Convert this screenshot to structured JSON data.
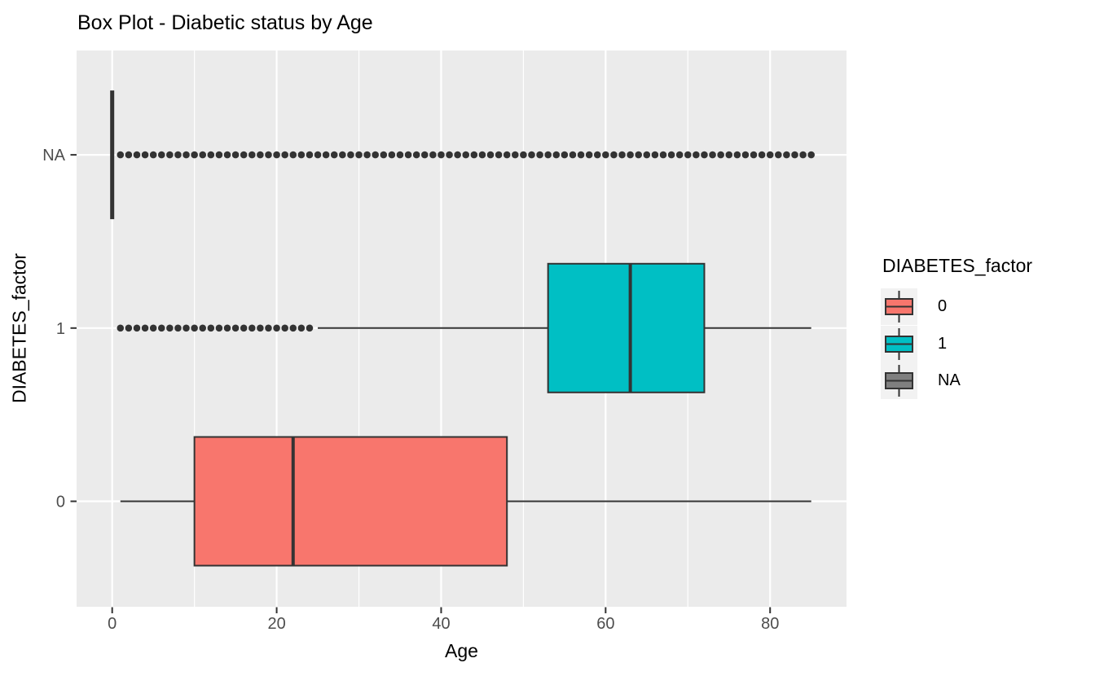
{
  "chart_data": {
    "type": "boxplot",
    "orientation": "horizontal",
    "title": "Box Plot - Diabetic status by Age",
    "xlabel": "Age",
    "ylabel": "DIABETES_factor",
    "x_ticks": [
      0,
      20,
      40,
      60,
      80
    ],
    "minor_gridlines_x": [
      10,
      30,
      50,
      70
    ],
    "xlim": [
      -4.3,
      89.3
    ],
    "categories": [
      "0",
      "1",
      "NA"
    ],
    "grid": "on",
    "panel_background": "#EBEBEB",
    "gridline_color": "#FFFFFF",
    "box_stroke_color": "#333333",
    "outlier_color": "#333333",
    "axis_text_color": "#4D4D4D",
    "series": [
      {
        "group": "0",
        "color": "#F8766D",
        "whisker_low": 1,
        "q1": 10,
        "median": 22,
        "q3": 48,
        "whisker_high": 85,
        "outliers": []
      },
      {
        "group": "1",
        "color": "#00BFC4",
        "whisker_low": 25,
        "q1": 53,
        "median": 63,
        "q3": 72,
        "whisker_high": 85,
        "outliers": [
          1,
          2,
          3,
          4,
          5,
          6,
          7,
          8,
          9,
          10,
          11,
          12,
          13,
          14,
          15,
          16,
          17,
          18,
          19,
          20,
          21,
          22,
          23,
          24
        ]
      },
      {
        "group": "NA",
        "color": "#7F7F7F",
        "whisker_low": 0,
        "q1": 0,
        "median": 0,
        "q3": 0,
        "whisker_high": 0,
        "outliers": [
          1,
          2,
          3,
          4,
          5,
          6,
          7,
          8,
          9,
          10,
          11,
          12,
          13,
          14,
          15,
          16,
          17,
          18,
          19,
          20,
          21,
          22,
          23,
          24,
          25,
          26,
          27,
          28,
          29,
          30,
          31,
          32,
          33,
          34,
          35,
          36,
          37,
          38,
          39,
          40,
          41,
          42,
          43,
          44,
          45,
          46,
          47,
          48,
          49,
          50,
          51,
          52,
          53,
          54,
          55,
          56,
          57,
          58,
          59,
          60,
          61,
          62,
          63,
          64,
          65,
          66,
          67,
          68,
          69,
          70,
          71,
          72,
          73,
          74,
          75,
          76,
          77,
          78,
          79,
          80,
          81,
          82,
          83,
          84,
          85
        ]
      }
    ],
    "legend": {
      "title": "DIABETES_factor",
      "position": "right",
      "entries": [
        {
          "label": "0",
          "color": "#F8766D"
        },
        {
          "label": "1",
          "color": "#00BFC4"
        },
        {
          "label": "NA",
          "color": "#7F7F7F"
        }
      ]
    }
  }
}
